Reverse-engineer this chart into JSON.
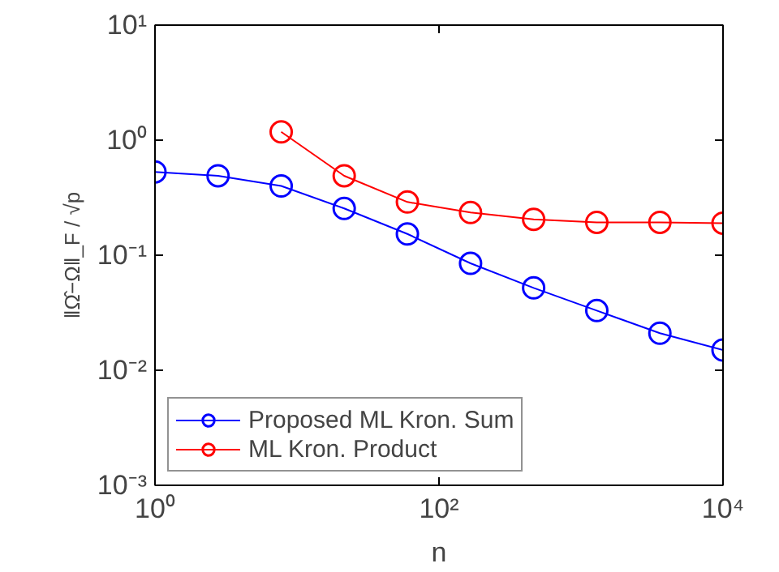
{
  "chart_data": {
    "type": "line",
    "xlabel": "n",
    "ylabel": "‖Ω̂−Ω‖_F / √p",
    "log": "xy",
    "marker": "circle",
    "grid": false,
    "legend": "bottom left",
    "x": [
      1,
      2.78,
      7.74,
      21.5,
      59.9,
      166.8,
      464,
      1292,
      3594,
      10000
    ],
    "xlim": [
      1,
      10000
    ],
    "xticks": [
      {
        "value": 1,
        "label": "10⁰"
      },
      {
        "value": 100,
        "label": "10²"
      },
      {
        "value": 10000,
        "label": "10⁴"
      }
    ],
    "ylim": [
      0.001,
      10
    ],
    "yticks": [
      {
        "value": 0.001,
        "label": "10⁻³"
      },
      {
        "value": 0.01,
        "label": "10⁻²"
      },
      {
        "value": 0.1,
        "label": "10⁻¹"
      },
      {
        "value": 1,
        "label": "10⁰"
      },
      {
        "value": 10,
        "label": "10¹"
      }
    ],
    "series": [
      {
        "name": "Proposed ML Kron. Sum",
        "color": "#0000ff",
        "values": [
          0.53,
          0.49,
          0.4,
          0.255,
          0.153,
          0.085,
          0.052,
          0.033,
          0.021,
          0.015
        ]
      },
      {
        "name": "ML Kron. Product",
        "color": "#ff0000",
        "values": [
          null,
          null,
          1.18,
          0.49,
          0.29,
          0.235,
          0.205,
          0.193,
          0.193,
          0.19
        ]
      }
    ]
  }
}
